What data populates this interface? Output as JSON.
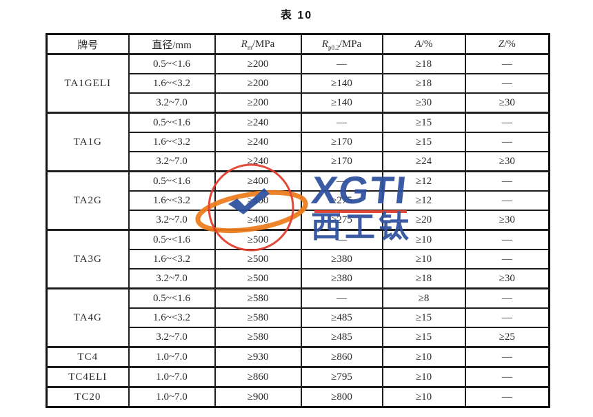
{
  "page": {
    "title": "表 10"
  },
  "table": {
    "columns": [
      {
        "pre": "牌号",
        "sub": "",
        "post": "",
        "italic": false
      },
      {
        "pre": "直径",
        "sub": "",
        "post": "/mm",
        "italic": false
      },
      {
        "pre": "R",
        "sub": "m",
        "post": "/MPa",
        "italic": true
      },
      {
        "pre": "R",
        "sub": "p0.2",
        "post": "/MPa",
        "italic": true
      },
      {
        "pre": "A",
        "sub": "",
        "post": "/%",
        "italic": true
      },
      {
        "pre": "Z",
        "sub": "",
        "post": "/%",
        "italic": true
      }
    ],
    "groups": [
      {
        "grade": "TA1GELI",
        "rows": [
          [
            "0.5~<1.6",
            "≥200",
            "—",
            "≥18",
            "—"
          ],
          [
            "1.6~<3.2",
            "≥200",
            "≥140",
            "≥18",
            "—"
          ],
          [
            "3.2~7.0",
            "≥200",
            "≥140",
            "≥30",
            "≥30"
          ]
        ]
      },
      {
        "grade": "TA1G",
        "rows": [
          [
            "0.5~<1.6",
            "≥240",
            "—",
            "≥15",
            "—"
          ],
          [
            "1.6~<3.2",
            "≥240",
            "≥170",
            "≥15",
            "—"
          ],
          [
            "3.2~7.0",
            "≥240",
            "≥170",
            "≥24",
            "≥30"
          ]
        ]
      },
      {
        "grade": "TA2G",
        "rows": [
          [
            "0.5~<1.6",
            "≥400",
            "—",
            "≥12",
            "—"
          ],
          [
            "1.6~<3.2",
            "≥400",
            "≥275",
            "≥12",
            "—"
          ],
          [
            "3.2~7.0",
            "≥400",
            "≥275",
            "≥20",
            "≥30"
          ]
        ]
      },
      {
        "grade": "TA3G",
        "rows": [
          [
            "0.5~<1.6",
            "≥500",
            "—",
            "≥10",
            "—"
          ],
          [
            "1.6~<3.2",
            "≥500",
            "≥380",
            "≥10",
            "—"
          ],
          [
            "3.2~7.0",
            "≥500",
            "≥380",
            "≥18",
            "≥30"
          ]
        ]
      },
      {
        "grade": "TA4G",
        "rows": [
          [
            "0.5~<1.6",
            "≥580",
            "—",
            "≥8",
            "—"
          ],
          [
            "1.6~<3.2",
            "≥580",
            "≥485",
            "≥15",
            "—"
          ],
          [
            "3.2~7.0",
            "≥580",
            "≥485",
            "≥15",
            "≥25"
          ]
        ]
      },
      {
        "grade": "TC4",
        "rows": [
          [
            "1.0~7.0",
            "≥930",
            "≥860",
            "≥10",
            "—"
          ]
        ]
      },
      {
        "grade": "TC4ELI",
        "rows": [
          [
            "1.0~7.0",
            "≥860",
            "≥795",
            "≥10",
            "—"
          ]
        ]
      },
      {
        "grade": "TC20",
        "rows": [
          [
            "1.0~7.0",
            "≥900",
            "≥800",
            "≥10",
            "—"
          ]
        ]
      }
    ]
  },
  "watermark": {
    "logo_text": "XGTI",
    "logo_subtext": "西工钛",
    "colors": {
      "blue": "#2d4f9e",
      "red": "#e23b2a",
      "orange": "#ee7c1b"
    }
  }
}
